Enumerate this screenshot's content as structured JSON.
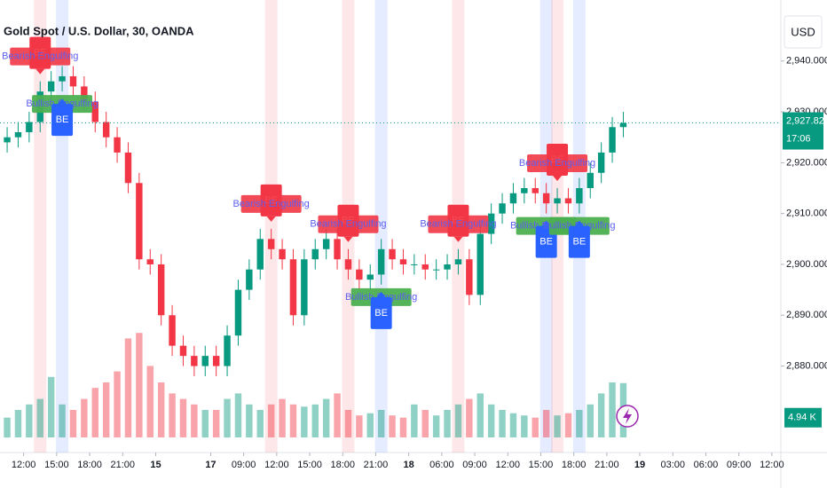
{
  "chart_data": {
    "type": "candlestick",
    "title": "Gold Spot / U.S. Dollar, 30, OANDA",
    "currency": "USD",
    "open": [
      2924,
      2925,
      2926,
      2928,
      2934,
      2936,
      2937,
      2935,
      2932,
      2928,
      2925,
      2922,
      2916,
      2901,
      2900,
      2890,
      2884,
      2882,
      2880,
      2882,
      2880,
      2886,
      2895,
      2899,
      2905,
      2903,
      2901,
      2890,
      2901,
      2903,
      2905,
      2901,
      2899,
      2897,
      2898,
      2903,
      2901,
      2900,
      2900,
      2899,
      2899,
      2900,
      2901,
      2894,
      2906,
      2910,
      2912,
      2914,
      2915,
      2914,
      2912,
      2913,
      2912,
      2915,
      2918,
      2922,
      2927
    ],
    "high": [
      2927,
      2928,
      2930,
      2936,
      2938,
      2939,
      2939,
      2937,
      2934,
      2930,
      2927,
      2924,
      2918,
      2903,
      2902,
      2892,
      2886,
      2884,
      2884,
      2884,
      2888,
      2897,
      2901,
      2907,
      2907,
      2905,
      2903,
      2903,
      2905,
      2907,
      2907,
      2903,
      2901,
      2900,
      2905,
      2905,
      2903,
      2902,
      2902,
      2901,
      2902,
      2903,
      2903,
      2908,
      2912,
      2914,
      2916,
      2917,
      2917,
      2916,
      2915,
      2915,
      2917,
      2920,
      2924,
      2929,
      2930
    ],
    "low": [
      2922,
      2923,
      2924,
      2926,
      2932,
      2934,
      2933,
      2930,
      2926,
      2923,
      2920,
      2914,
      2899,
      2898,
      2888,
      2882,
      2880,
      2878,
      2878,
      2878,
      2878,
      2884,
      2893,
      2897,
      2901,
      2899,
      2888,
      2888,
      2899,
      2901,
      2899,
      2897,
      2895,
      2895,
      2896,
      2899,
      2898,
      2898,
      2897,
      2897,
      2897,
      2898,
      2892,
      2892,
      2904,
      2908,
      2910,
      2912,
      2912,
      2910,
      2910,
      2910,
      2910,
      2913,
      2916,
      2920,
      2925
    ],
    "close": [
      2925,
      2926,
      2928,
      2934,
      2936,
      2937,
      2935,
      2932,
      2928,
      2925,
      2922,
      2916,
      2901,
      2900,
      2890,
      2884,
      2882,
      2880,
      2882,
      2880,
      2886,
      2895,
      2899,
      2905,
      2903,
      2901,
      2890,
      2901,
      2903,
      2905,
      2901,
      2899,
      2897,
      2898,
      2903,
      2901,
      2900,
      2900,
      2899,
      2899,
      2900,
      2901,
      2894,
      2906,
      2910,
      2912,
      2914,
      2915,
      2914,
      2912,
      2913,
      2912,
      2915,
      2918,
      2922,
      2927,
      2927.825
    ],
    "volume": [
      1.8,
      2.5,
      3.0,
      3.5,
      5.5,
      3.0,
      2.5,
      3.5,
      4.5,
      5.0,
      6.0,
      9.0,
      9.5,
      6.5,
      5.0,
      4.0,
      3.5,
      3.0,
      2.5,
      2.5,
      3.5,
      4.0,
      3.0,
      2.5,
      3.0,
      3.5,
      3.0,
      2.8,
      3.0,
      3.5,
      4.0,
      2.5,
      2.0,
      2.2,
      2.5,
      2.0,
      1.8,
      3.0,
      2.5,
      2.0,
      2.5,
      3.0,
      3.5,
      4.0,
      3.0,
      2.5,
      2.2,
      2.0,
      1.8,
      2.5,
      2.0,
      2.2,
      2.5,
      3.0,
      4.0,
      5.0,
      4.94
    ],
    "volume_label": "4.94 K",
    "last_price_label": "2,927.825",
    "countdown": "17:06",
    "up_color": "#089981",
    "down_color": "#f23645",
    "ylim": [
      2863,
      2952
    ],
    "yticks": [
      {
        "value": 2880,
        "label": "2,880.000"
      },
      {
        "value": 2890,
        "label": "2,890.000"
      },
      {
        "value": 2900,
        "label": "2,900.000"
      },
      {
        "value": 2910,
        "label": "2,910.000"
      },
      {
        "value": 2920,
        "label": "2,920.000"
      },
      {
        "value": 2930,
        "label": "2,930.000"
      },
      {
        "value": 2940,
        "label": "2,940.000"
      }
    ],
    "xlim": [
      -0.65,
      70.32
    ],
    "xticks": [
      {
        "value": 1.5,
        "label": "12:00"
      },
      {
        "value": 4.5,
        "label": "15:00"
      },
      {
        "value": 7.5,
        "label": "18:00"
      },
      {
        "value": 10.5,
        "label": "21:00"
      },
      {
        "value": 13.5,
        "label": "15"
      },
      {
        "value": 18.5,
        "label": "17"
      },
      {
        "value": 21.5,
        "label": "09:00"
      },
      {
        "value": 24.5,
        "label": "12:00"
      },
      {
        "value": 27.5,
        "label": "15:00"
      },
      {
        "value": 30.5,
        "label": "18:00"
      },
      {
        "value": 33.5,
        "label": "21:00"
      },
      {
        "value": 36.5,
        "label": "18"
      },
      {
        "value": 39.5,
        "label": "06:00"
      },
      {
        "value": 42.5,
        "label": "09:00"
      },
      {
        "value": 45.5,
        "label": "12:00"
      },
      {
        "value": 48.5,
        "label": "15:00"
      },
      {
        "value": 51.5,
        "label": "18:00"
      },
      {
        "value": 54.5,
        "label": "21:00"
      },
      {
        "value": 57.5,
        "label": "19"
      },
      {
        "value": 60.5,
        "label": "03:00"
      },
      {
        "value": 63.5,
        "label": "06:00"
      },
      {
        "value": 66.5,
        "label": "09:00"
      },
      {
        "value": 69.5,
        "label": "12:00"
      }
    ],
    "signals": [
      {
        "candle": 3,
        "kind": "bearish",
        "label": "BE",
        "text": "Bearish Engulfing"
      },
      {
        "candle": 5,
        "kind": "bullish",
        "label": "BE",
        "text": "Bullish Engulfing"
      },
      {
        "candle": 24,
        "kind": "bearish",
        "label": "BE",
        "text": "Bearish Engulfing"
      },
      {
        "candle": 31,
        "kind": "bearish",
        "label": "BE",
        "text": "Bearish Engulfing"
      },
      {
        "candle": 34,
        "kind": "bullish",
        "label": "BE",
        "text": "Bullish Engulfing"
      },
      {
        "candle": 41,
        "kind": "bearish",
        "label": "BE",
        "text": "Bearish Engulfing"
      },
      {
        "candle": 49,
        "kind": "bullish",
        "label": "BE",
        "text": "Bullish Engulfing"
      },
      {
        "candle": 50,
        "kind": "bearish",
        "label": "BE",
        "text": "Bearish Engulfing"
      },
      {
        "candle": 52,
        "kind": "bullish",
        "label": "BE",
        "text": "Bullish Engulfing"
      }
    ]
  }
}
